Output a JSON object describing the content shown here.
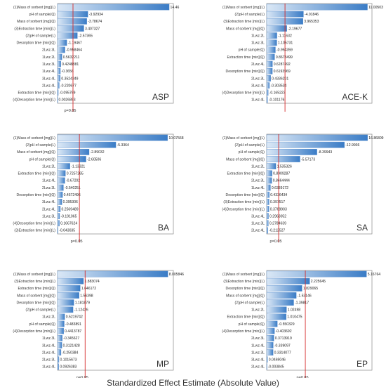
{
  "xlabel": "Standardized Effect Estimate (Absolute Value)",
  "colors": {
    "bar_light": "#d8e6f5",
    "bar_dark": "#3a7cc6",
    "bar_edge": "#5b8fcf",
    "pline": "#d42b2b",
    "axis": "#888888",
    "text": "#333333"
  },
  "chart_data": [
    {
      "type": "bar",
      "title": "ASP",
      "pvalue_label": "p=0.05",
      "pvalue": 2.0,
      "categories": [
        "(1)Mass of sorbent [mg](L)",
        "pH of sample(Q)",
        "Mass of sorbent [mg](Q)",
        "(3)Extraction time [min](L)",
        "(2)pH of sample(L)",
        "Desorption time [min](Q)",
        "2Lwz.3L",
        "1Lwz.2L",
        "1Lwz.3L",
        "1Lwz.4L",
        "3Lwz.4L",
        "2Lwz.4L",
        "Extraction time [min](Q)",
        "(4)Desorption time [min](L)"
      ],
      "labels": [
        "14.46",
        "-3.92934",
        "-3.78674",
        "3.407327",
        "-2.57365",
        "-1.19467",
        "-0.958464",
        "0.5632211",
        "0.4248881",
        "-0.3656",
        "0.3524249",
        "-0.220677",
        "-0.095769",
        "0.0026893"
      ],
      "values": [
        14.46,
        3.92934,
        3.78674,
        3.407327,
        2.57365,
        1.19467,
        0.958464,
        0.5632211,
        0.4248881,
        0.3656,
        0.3524249,
        0.220677,
        0.095769,
        0.0026893
      ],
      "xlim": [
        0,
        15
      ]
    },
    {
      "type": "bar",
      "title": "ACE-K",
      "pvalue_label": "",
      "pvalue": 2.0,
      "categories": [
        "(1)Mass of sorbent [mg](L)",
        "(2)pH of sample(L)",
        "(3)Extraction time [min](L)",
        "Mass of sorbent [mg](Q)",
        "1Lwz.2L",
        "1Lwz.3L",
        "pH of sample(Q)",
        "Extraction time [min](Q)",
        "2Lwz.4L",
        "Desorption time [min](Q)",
        "2Lwz.3L",
        "3Lwz.4L",
        "(4)Desorption time [min](L)",
        "1Lwz.4L"
      ],
      "labels": [
        "11.00503",
        "-4.01846",
        "3.965353",
        "-2.19677",
        "-1.11632",
        "1.105731",
        "-0.954359",
        "0.8678499",
        "0.6287492",
        "0.6193969",
        "0.4336201",
        "-0.303534",
        "-0.165223",
        "-0.101176"
      ],
      "values": [
        11.00503,
        4.01846,
        3.965353,
        2.19677,
        1.11632,
        1.105731,
        0.954359,
        0.8678499,
        0.6287492,
        0.6193969,
        0.4336201,
        0.303534,
        0.165223,
        0.101176
      ],
      "xlim": [
        0,
        11.5
      ]
    },
    {
      "type": "bar",
      "title": "BA",
      "pvalue_label": "p=0.05",
      "pvalue": 2.0,
      "categories": [
        "(1)Mass of sorbent [mg](L)",
        "(2)pH of sample(L)",
        "Mass of sorbent [mg](Q)",
        "pH of sample(Q)",
        "1Lwz.2L",
        "Extraction time [min](Q)",
        "1Lwz.4L",
        "2Lwz.3L",
        "Desorption time [min](Q)",
        "3Lwz.4L",
        "2Lwz.4L",
        "1Lwz.3L",
        "(4)Desorption time [min](L)",
        "(3)Extraction time [min](L)"
      ],
      "labels": [
        "10.07568",
        "-5.3364",
        "-2.89032",
        "-2.60506",
        "-1.13321",
        "0.7257265",
        "-0.67202",
        "-0.540251",
        "0.4572496",
        "0.395306",
        "0.2569489",
        "-0.191065",
        "0.1667624",
        "-0.043035"
      ],
      "values": [
        10.07568,
        5.3364,
        2.89032,
        2.60506,
        1.13321,
        0.7257265,
        0.67202,
        0.540251,
        0.4572496,
        0.395306,
        0.2569489,
        0.191065,
        0.1667624,
        0.043035
      ],
      "xlim": [
        0,
        10.6
      ]
    },
    {
      "type": "bar",
      "title": "SA",
      "pvalue_label": "p=0.05",
      "pvalue": 2.0,
      "categories": [
        "(1)Mass of sorbent [mg](L)",
        "(2)pH of sample(L)",
        "pH of sample(Q)",
        "Mass of sorbent [mg](Q)",
        "1Lwz.2L",
        "Extraction time [min](Q)",
        "2Lwz.3L",
        "1Lwz.4L",
        "Desorption time [min](Q)",
        "(3)Extraction time [min](L)",
        "(4)Desorption time [min](L)",
        "3Lwz.4L",
        "1Lwz.3L",
        "2Lwz.4L"
      ],
      "labels": [
        "16.86809",
        "-12.9936",
        "-8.39943",
        "-5.57173",
        "1.535326",
        "0.8909287",
        "0.8464444",
        "0.6339172",
        "0.4336434",
        "0.397517",
        "0.3769903",
        "0.2963052",
        "0.2784639",
        "-0.212527"
      ],
      "values": [
        16.86809,
        12.9936,
        8.39943,
        5.57173,
        1.535326,
        0.8909287,
        0.8464444,
        0.6339172,
        0.4336434,
        0.397517,
        0.3769903,
        0.2963052,
        0.2784639,
        0.212527
      ],
      "xlim": [
        0,
        17.6
      ]
    },
    {
      "type": "bar",
      "title": "MP",
      "pvalue_label": "p=0.05",
      "pvalue": 2.0,
      "categories": [
        "(1)Mass of sorbent [mg](L)",
        "(3)Extraction time [min](L)",
        "Extraction time [min](Q)",
        "Mass of sorbent [mg](Q)",
        "Desorption time [min](Q)",
        "(2)pH of sample(L)",
        "1Lwz.2L",
        "pH of sample(Q)",
        "(4)Desorption time [min](L)",
        "1Lwz.3L",
        "3Lwz.4L",
        "2Lwz.4L",
        "2Lwz.3L",
        "1Lwz.4L"
      ],
      "labels": [
        "8.005846",
        "1.883074",
        "1.646172",
        "1.56398",
        "1.181879",
        "-1.12426",
        "0.5219742",
        "-0.483891",
        "0.4413787",
        "-0.345627",
        "0.3121428",
        "-0.250384",
        "0.1015673",
        "0.0926383"
      ],
      "values": [
        8.005846,
        1.883074,
        1.646172,
        1.56398,
        1.181879,
        1.12426,
        0.5219742,
        0.483891,
        0.4413787,
        0.345627,
        0.3121428,
        0.250384,
        0.1015673,
        0.0926383
      ],
      "xlim": [
        0,
        8.4
      ]
    },
    {
      "type": "bar",
      "title": "EP",
      "pvalue_label": "p=0.05",
      "pvalue": 2.0,
      "categories": [
        "(1)Mass of sorbent [mg](L)",
        "(3)Extraction time [min](L)",
        "Desorption time [min](Q)",
        "Mass of sorbent [mg](Q)",
        "(2)pH of sample(L)",
        "1Lwz.2L",
        "Extraction time [min](Q)",
        "pH of sample(Q)",
        "(4)Desorption time [min](L)",
        "2Lwz.3L",
        "1Lwz.4L",
        "1Lwz.3L",
        "3Lwz.4L",
        "2Lwz.4L"
      ],
      "labels": [
        "5.16764",
        "2.225645",
        "1.829065",
        "-1.53146",
        "-1.39817",
        "1.02498",
        "1.010475",
        "-0.550329",
        "-0.403692",
        "0.3713919",
        "-0.339097",
        "0.3314077",
        "0.0469046",
        "-0.003845"
      ],
      "values": [
        5.16764,
        2.225645,
        1.829065,
        1.53146,
        1.39817,
        1.02498,
        1.010475,
        0.550329,
        0.403692,
        0.3713919,
        0.339097,
        0.3314077,
        0.0469046,
        0.003845
      ],
      "xlim": [
        0,
        5.45
      ]
    }
  ]
}
